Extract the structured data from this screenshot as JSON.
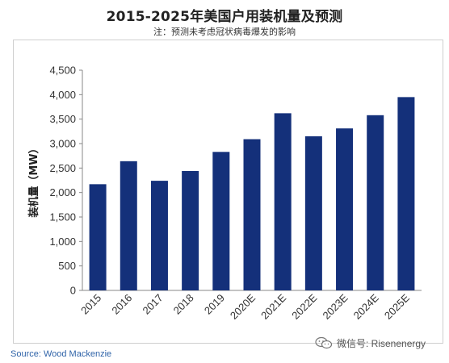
{
  "header": {
    "title": "2015-2025年美国户用装机量及预测",
    "subtitle": "注：预测未考虑冠状病毒爆发的影响"
  },
  "chart_data": {
    "type": "bar",
    "categories": [
      "2015",
      "2016",
      "2017",
      "2018",
      "2019",
      "2020E",
      "2021E",
      "2022E",
      "2023E",
      "2024E",
      "2025E"
    ],
    "values": [
      2170,
      2640,
      2240,
      2440,
      2830,
      3090,
      3620,
      3150,
      3310,
      3580,
      3950
    ],
    "ylabel": "装机量（MW）",
    "xlabel": "",
    "ylim": [
      0,
      4500
    ],
    "yticks": [
      "0",
      "500",
      "1,000",
      "1,500",
      "2,000",
      "2,500",
      "3,000",
      "3,500",
      "4,000",
      "4,500"
    ],
    "grid": false,
    "legend": "none",
    "bar_color": "#14307a"
  },
  "footer": {
    "source": "Source: Wood Mackenzie",
    "watermark": "微信号: Risenenergy",
    "watermark_icon": "wechat-icon"
  }
}
